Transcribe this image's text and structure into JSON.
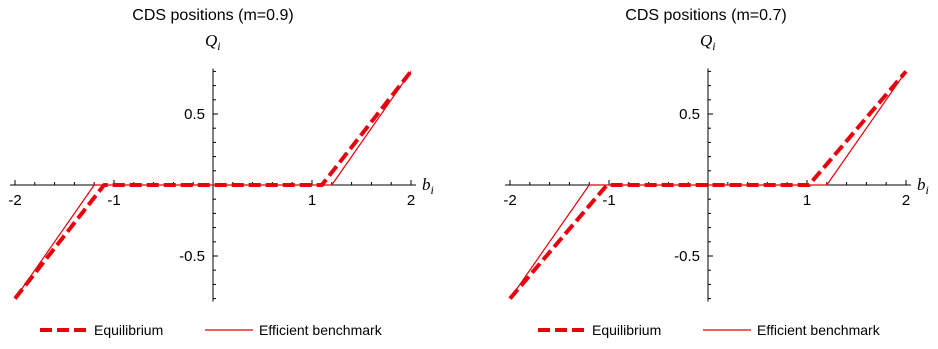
{
  "chart_data": [
    {
      "type": "line",
      "title": "CDS positions (m=0.9)",
      "xlabel": "b",
      "xlabel_sub": "i",
      "ylabel": "Q",
      "ylabel_sub": "i",
      "xlim": [
        -2.05,
        2.05
      ],
      "ylim": [
        -0.82,
        0.82
      ],
      "xticks": [
        {
          "v": -2,
          "label": "-2"
        },
        {
          "v": -1,
          "label": "-1"
        },
        {
          "v": 1,
          "label": "1"
        },
        {
          "v": 2,
          "label": "2"
        }
      ],
      "yticks": [
        {
          "v": 0.5,
          "label": "0.5"
        },
        {
          "v": -0.5,
          "label": "-0.5"
        }
      ],
      "series": [
        {
          "name": "Equilibrium",
          "style": "dashed-thick",
          "color": "#e8000b",
          "x": [
            -2.0,
            -1.1,
            1.1,
            2.0
          ],
          "y": [
            -0.8,
            0.0,
            0.0,
            0.8
          ]
        },
        {
          "name": "Efficient benchmark",
          "style": "solid-thin",
          "color": "#e8000b",
          "x": [
            -2.0,
            -1.2,
            1.2,
            2.0
          ],
          "y": [
            -0.8,
            0.0,
            0.0,
            0.8
          ]
        }
      ]
    },
    {
      "type": "line",
      "title": "CDS positions (m=0.7)",
      "xlabel": "b",
      "xlabel_sub": "i",
      "ylabel": "Q",
      "ylabel_sub": "i",
      "xlim": [
        -2.05,
        2.05
      ],
      "ylim": [
        -0.82,
        0.82
      ],
      "xticks": [
        {
          "v": -2,
          "label": "-2"
        },
        {
          "v": -1,
          "label": "-1"
        },
        {
          "v": 1,
          "label": "1"
        },
        {
          "v": 2,
          "label": "2"
        }
      ],
      "yticks": [
        {
          "v": 0.5,
          "label": "0.5"
        },
        {
          "v": -0.5,
          "label": "-0.5"
        }
      ],
      "series": [
        {
          "name": "Equilibrium",
          "style": "dashed-thick",
          "color": "#e8000b",
          "x": [
            -2.0,
            -1.02,
            1.02,
            2.0
          ],
          "y": [
            -0.8,
            0.0,
            0.0,
            0.8
          ]
        },
        {
          "name": "Efficient benchmark",
          "style": "solid-thin",
          "color": "#e8000b",
          "x": [
            -2.0,
            -1.2,
            1.2,
            2.0
          ],
          "y": [
            -0.8,
            0.0,
            0.0,
            0.8
          ]
        }
      ]
    }
  ]
}
